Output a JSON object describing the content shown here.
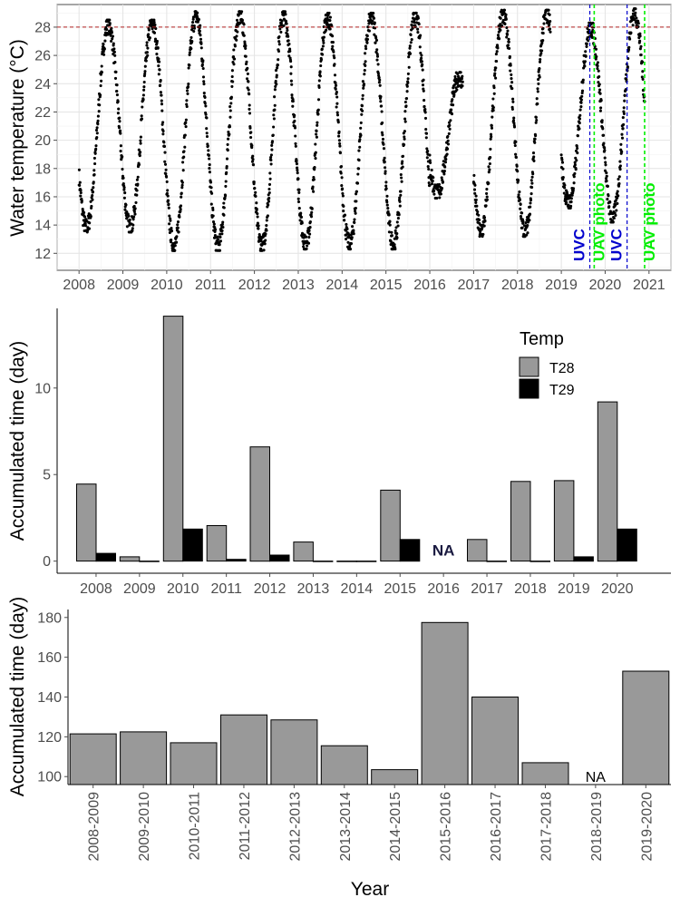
{
  "chart_data": [
    {
      "type": "scatter",
      "ylabel": "Water temperature (°C)",
      "xlabel": "",
      "x_ticks": [
        "2008",
        "2009",
        "2010",
        "2011",
        "2012",
        "2013",
        "2014",
        "2015",
        "2016",
        "2017",
        "2018",
        "2019",
        "2020",
        "2021"
      ],
      "y_ticks": [
        12,
        14,
        16,
        18,
        20,
        22,
        24,
        26,
        28
      ],
      "xlim": [
        2007.5,
        2021.5
      ],
      "ylim": [
        10.8,
        29.6
      ],
      "grid": true,
      "threshold": {
        "y": 28,
        "color": "#b22222"
      },
      "series": [
        {
          "values_note_free": true,
          "segments": [
            {
              "start": 2008.0,
              "end": 2009.8,
              "min": 13.8,
              "max": 28.2,
              "phase": "trough"
            },
            {
              "start": 2009.8,
              "end": 2013.0,
              "min": 12.5,
              "max": 28.8,
              "phase": "trough"
            },
            {
              "start": 2013.0,
              "end": 2016.0,
              "min": 12.6,
              "max": 28.7,
              "phase": "trough"
            },
            {
              "start": 2016.0,
              "end": 2016.75,
              "min": 16.2,
              "max": 24.5,
              "phase": "trough"
            },
            {
              "start": 2017.0,
              "end": 2018.75,
              "min": 13.5,
              "max": 28.9,
              "phase": "trough"
            },
            {
              "start": 2019.0,
              "end": 2019.9,
              "min": 15.5,
              "max": 28.0,
              "phase": "trough"
            },
            {
              "start": 2019.9,
              "end": 2020.9,
              "min": 14.5,
              "max": 29.0,
              "phase": "trough"
            }
          ]
        }
      ],
      "annotations": [
        {
          "text": "UVC",
          "x": 2019.65,
          "color": "#0000cd"
        },
        {
          "text": "UAV photo",
          "x": 2019.75,
          "color": "#00ee00"
        },
        {
          "text": "UVC",
          "x": 2020.5,
          "color": "#0000cd"
        },
        {
          "text": "UAV photo",
          "x": 2020.9,
          "color": "#00ee00"
        }
      ]
    },
    {
      "type": "bar",
      "ylabel": "Accumulated time (day)",
      "xlabel": "",
      "categories": [
        "2008",
        "2009",
        "2010",
        "2011",
        "2012",
        "2013",
        "2014",
        "2015",
        "2016",
        "2017",
        "2018",
        "2019",
        "2020"
      ],
      "ylim": [
        -0.7,
        14.6
      ],
      "y_ticks": [
        0,
        5,
        10
      ],
      "legend": {
        "title": "Temp",
        "placement": "top-right"
      },
      "series": [
        {
          "name": "T28",
          "color": "#999999",
          "values": [
            4.45,
            0.25,
            14.15,
            2.05,
            6.6,
            1.1,
            0.0,
            4.1,
            null,
            1.25,
            4.6,
            4.65,
            9.2
          ]
        },
        {
          "name": "T29",
          "color": "#000000",
          "values": [
            0.45,
            0.0,
            1.85,
            0.1,
            0.35,
            0.0,
            0.0,
            1.25,
            null,
            0.0,
            0.0,
            0.25,
            1.85
          ]
        }
      ],
      "na_label": "NA",
      "na_category": "2016"
    },
    {
      "type": "bar",
      "ylabel": "Accumulated time (day)",
      "xlabel": "Year",
      "categories": [
        "2008-2009",
        "2009-2010",
        "2010-2011",
        "2011-2012",
        "2012-2013",
        "2013-2014",
        "2014-2015",
        "2015-2016",
        "2016-2017",
        "2017-2018",
        "2018-2019",
        "2019-2020"
      ],
      "values": [
        121.5,
        122.5,
        117,
        131,
        128.5,
        115.5,
        103.5,
        177.5,
        140,
        107,
        null,
        153
      ],
      "ylim": [
        96,
        184
      ],
      "y_ticks": [
        100,
        120,
        140,
        160,
        180
      ],
      "color": "#999999",
      "na_label": "NA",
      "na_category": "2018-2019"
    }
  ]
}
